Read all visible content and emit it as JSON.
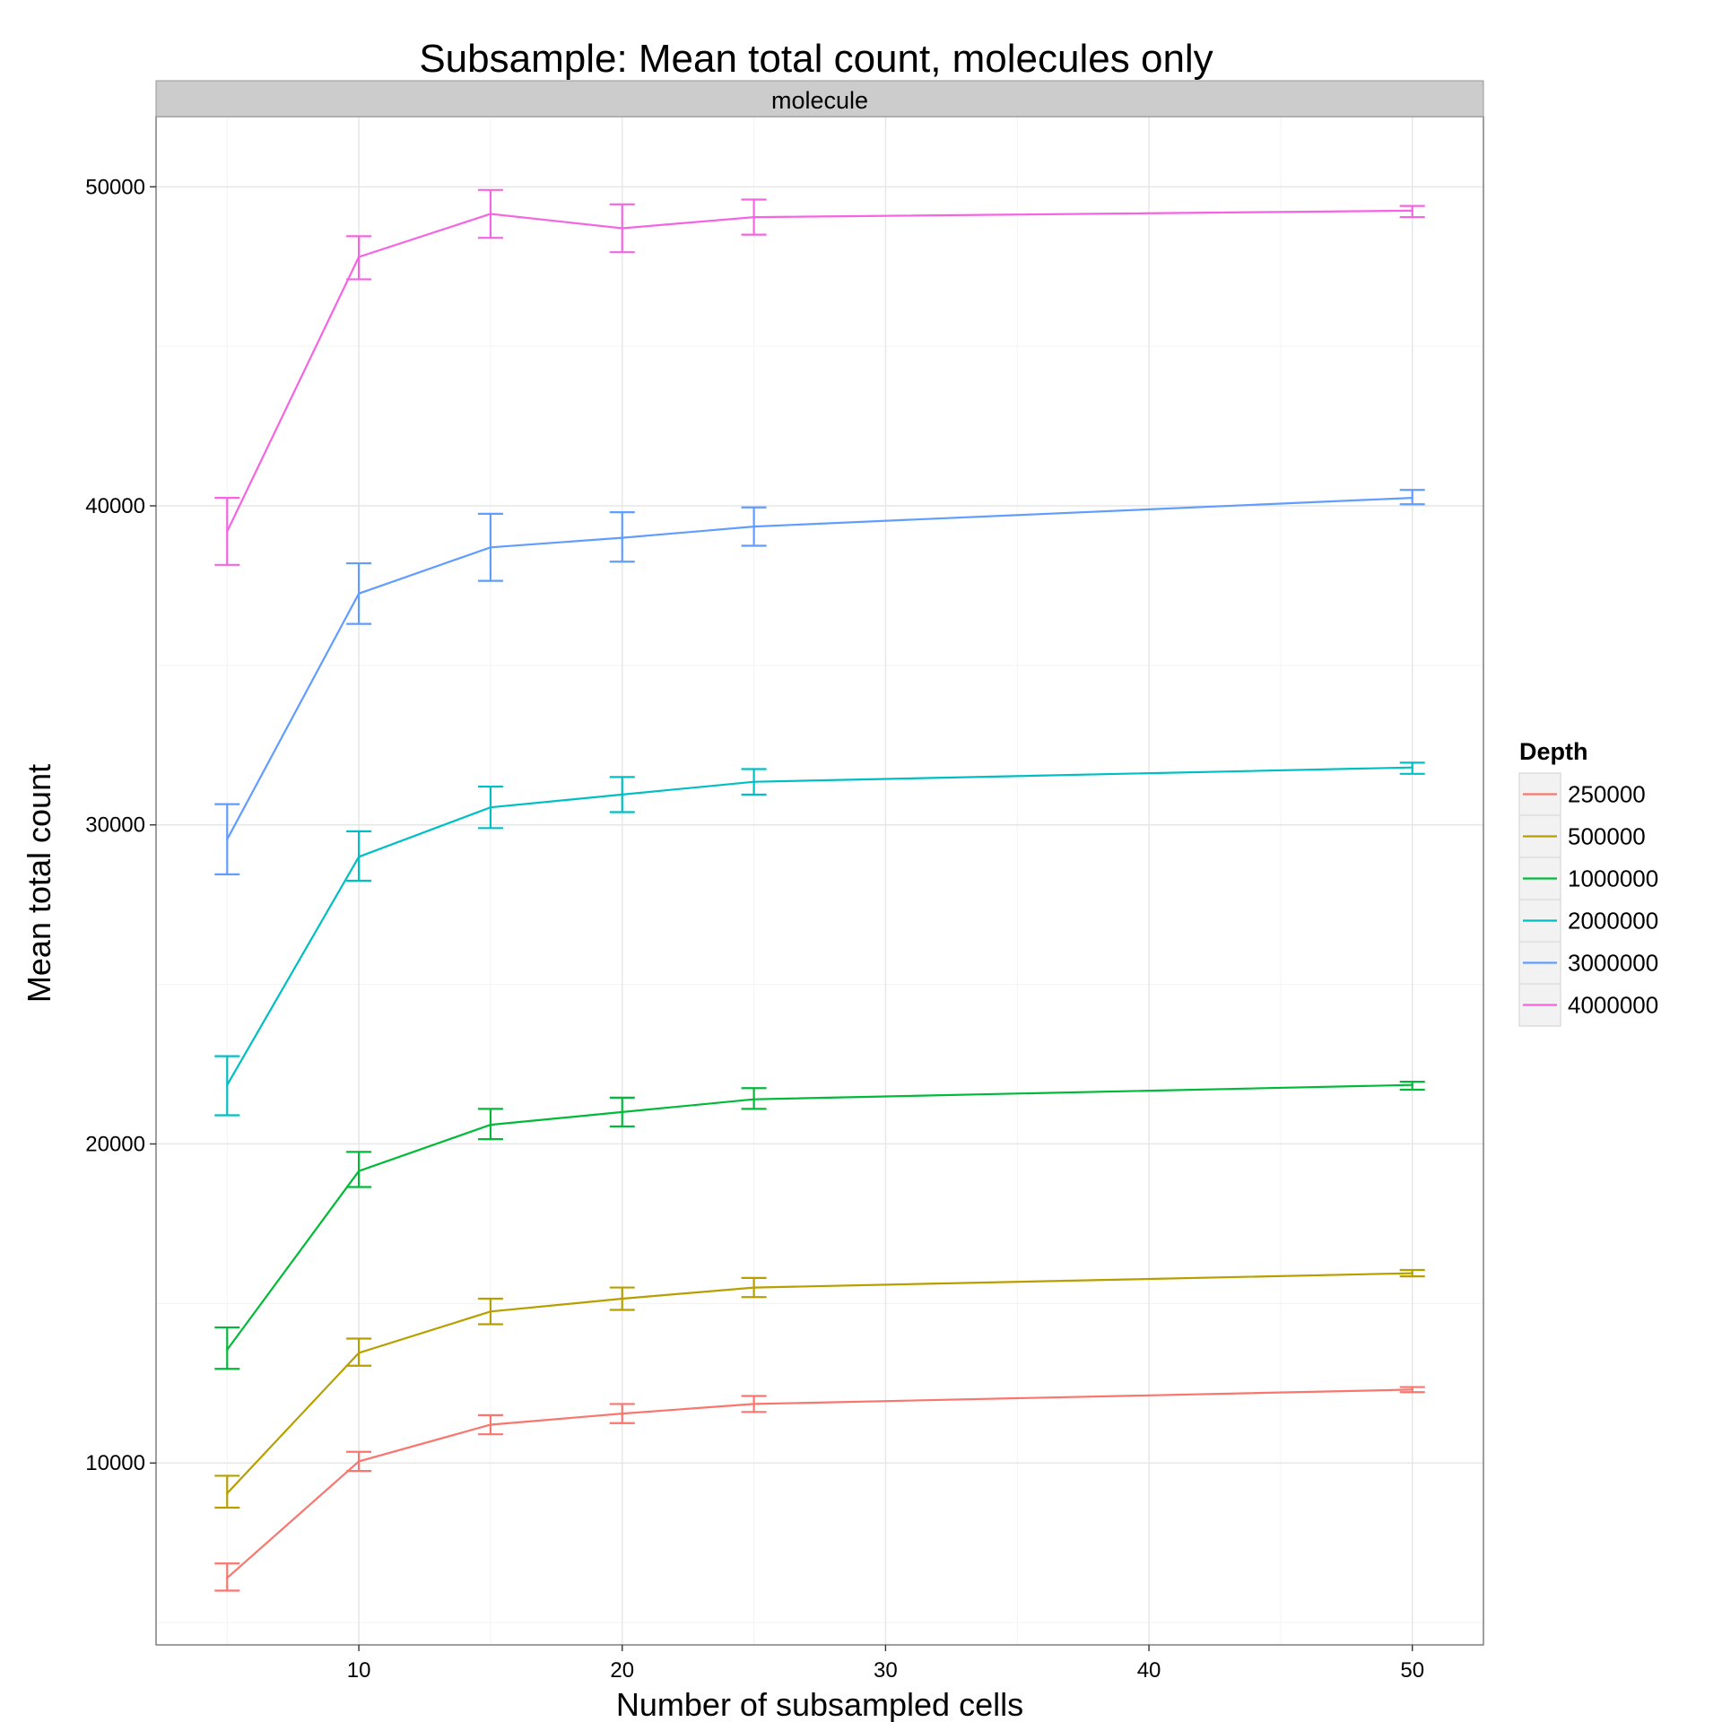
{
  "chart_data": {
    "type": "line",
    "title": "Subsample: Mean total count, molecules only",
    "facet_label": "molecule",
    "xlabel": "Number of subsampled cells",
    "ylabel": "Mean total count",
    "xlim": [
      2.3,
      52.7
    ],
    "ylim": [
      4300,
      52200
    ],
    "x_ticks": [
      10,
      20,
      30,
      40,
      50
    ],
    "y_ticks": [
      10000,
      20000,
      30000,
      40000,
      50000
    ],
    "grid": true,
    "legend_title": "Depth",
    "legend_position": "right",
    "x": [
      5,
      10,
      15,
      20,
      25,
      50
    ],
    "series": [
      {
        "name": "250000",
        "color": "#F8766D",
        "values": [
          6400,
          10050,
          11200,
          11550,
          11850,
          12300
        ],
        "lower": [
          6000,
          9750,
          10900,
          11250,
          11600,
          12220
        ],
        "upper": [
          6850,
          10350,
          11500,
          11850,
          12100,
          12380
        ]
      },
      {
        "name": "500000",
        "color": "#B79F00",
        "values": [
          9050,
          13450,
          14750,
          15150,
          15500,
          15950
        ],
        "lower": [
          8600,
          13050,
          14350,
          14800,
          15200,
          15850
        ],
        "upper": [
          9600,
          13900,
          15150,
          15500,
          15800,
          16050
        ]
      },
      {
        "name": "1000000",
        "color": "#00BA38",
        "values": [
          13550,
          19150,
          20600,
          21000,
          21400,
          21850
        ],
        "lower": [
          12950,
          18650,
          20150,
          20550,
          21100,
          21700
        ],
        "upper": [
          14250,
          19750,
          21100,
          21450,
          21750,
          21950
        ]
      },
      {
        "name": "2000000",
        "color": "#00BFC4",
        "values": [
          21850,
          29000,
          30550,
          30950,
          31350,
          31800
        ],
        "lower": [
          20900,
          28250,
          29900,
          30400,
          30950,
          31600
        ],
        "upper": [
          22750,
          29800,
          31200,
          31500,
          31750,
          31950
        ]
      },
      {
        "name": "3000000",
        "color": "#619CFF",
        "values": [
          29550,
          37250,
          38700,
          39000,
          39350,
          40250
        ],
        "lower": [
          28450,
          36300,
          37650,
          38250,
          38750,
          40050
        ],
        "upper": [
          30650,
          38200,
          39750,
          39800,
          39950,
          40500
        ]
      },
      {
        "name": "4000000",
        "color": "#F564E3",
        "values": [
          39200,
          47800,
          49150,
          48700,
          49050,
          49250
        ],
        "lower": [
          38150,
          47100,
          48400,
          47950,
          48500,
          49050
        ],
        "upper": [
          40250,
          48450,
          49900,
          49450,
          49600,
          49400
        ]
      }
    ]
  }
}
